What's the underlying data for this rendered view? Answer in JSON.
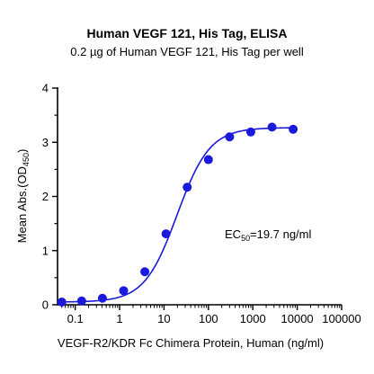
{
  "chart_data": {
    "type": "scatter",
    "title": "Human VEGF 121, His Tag, ELISA",
    "subtitle": "0.2 µg of Human VEGF 121, His Tag per well",
    "xlabel": "VEGF-R2/KDR Fc Chimera Protein, Human (ng/ml)",
    "ylabel_main": "Mean Abs.(OD",
    "ylabel_sub": "450",
    "ylabel_close": ")",
    "x_scale": "log",
    "xlim": [
      0.04,
      100000
    ],
    "ylim": [
      0,
      4
    ],
    "x_ticks": [
      0.1,
      1,
      10,
      100,
      1000,
      10000,
      100000
    ],
    "x_tick_labels": [
      "0.1",
      "1",
      "10",
      "100",
      "1000",
      "10000",
      "100000"
    ],
    "y_ticks": [
      0,
      1,
      2,
      3,
      4
    ],
    "y_tick_labels": [
      "0",
      "1",
      "2",
      "3",
      "4"
    ],
    "grid": false,
    "annotation": {
      "prefix": "EC",
      "sub": "50",
      "suffix": "=19.7 ng/ml"
    },
    "series": [
      {
        "color": "#1a1adc",
        "x": [
          0.05,
          0.14,
          0.41,
          1.23,
          3.7,
          11.1,
          33.3,
          100,
          300,
          900,
          2700,
          8100
        ],
        "y": [
          0.05,
          0.07,
          0.12,
          0.26,
          0.61,
          1.31,
          2.17,
          2.68,
          3.1,
          3.19,
          3.28,
          3.24
        ]
      }
    ],
    "fit": {
      "bottom": 0.05,
      "top": 3.27,
      "ec50": 19.7,
      "hill": 1.18
    }
  }
}
